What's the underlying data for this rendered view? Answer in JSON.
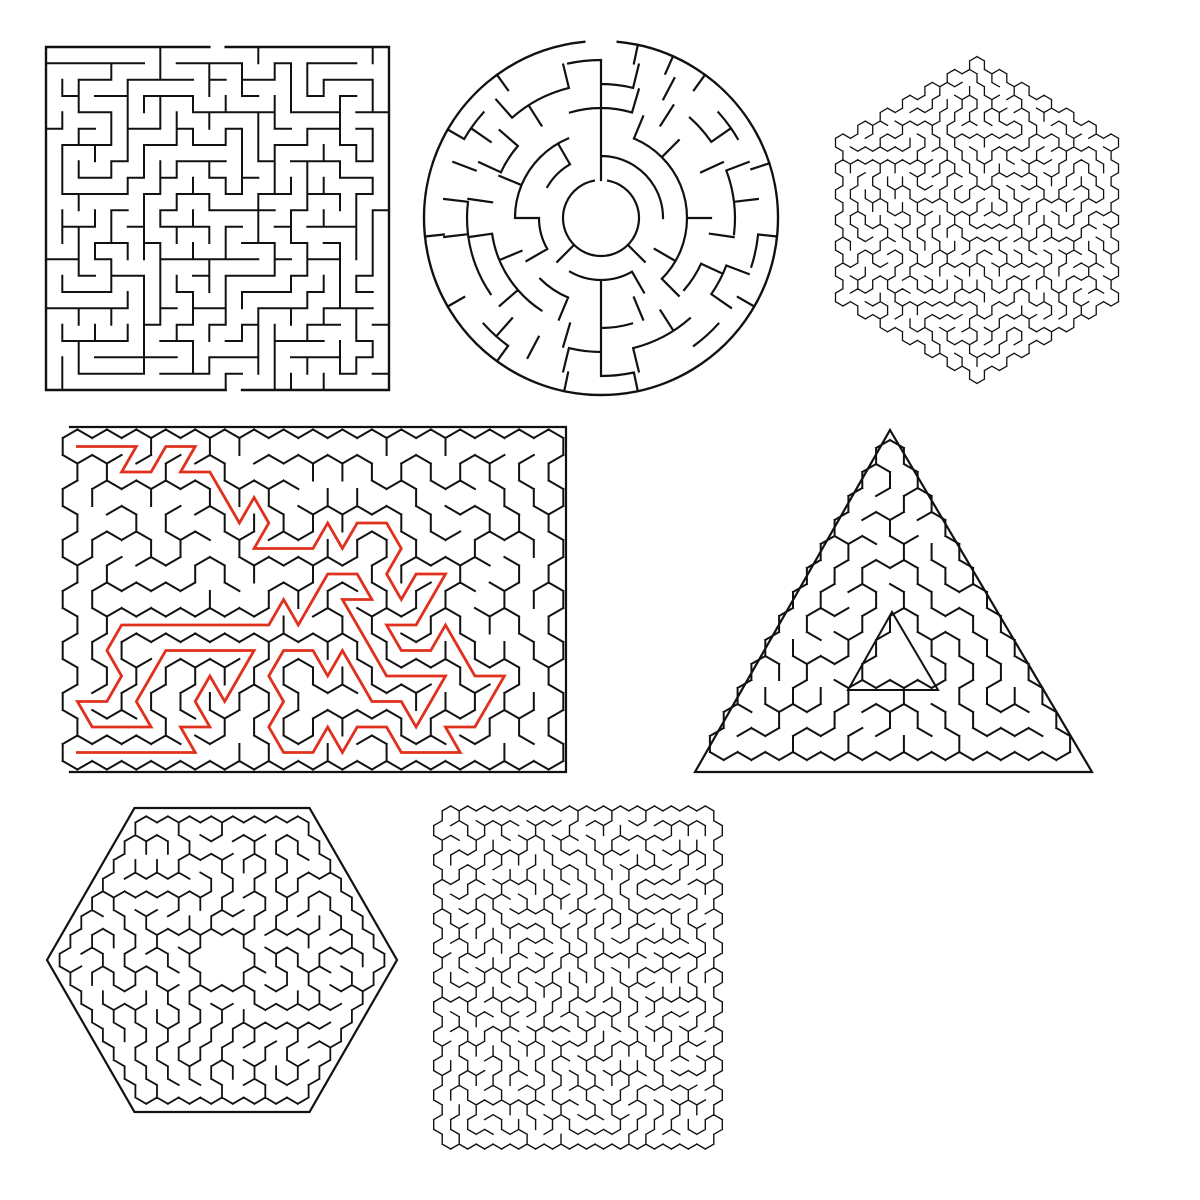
{
  "page": {
    "background": "#ffffff"
  },
  "colors": {
    "wall": "#111111",
    "solution_path": "#e0301e"
  },
  "mazes": [
    {
      "shape": "square",
      "grid": "orthogonal",
      "solved": false
    },
    {
      "shape": "circle",
      "grid": "polar",
      "solved": false
    },
    {
      "shape": "hexagon",
      "grid": "hex",
      "solved": false
    },
    {
      "shape": "rectangle",
      "grid": "hex",
      "solved": true
    },
    {
      "shape": "triangle",
      "grid": "hex",
      "solved": false
    },
    {
      "shape": "hexagon",
      "grid": "hex",
      "solved": false
    },
    {
      "shape": "square",
      "grid": "hex",
      "solved": false
    }
  ]
}
